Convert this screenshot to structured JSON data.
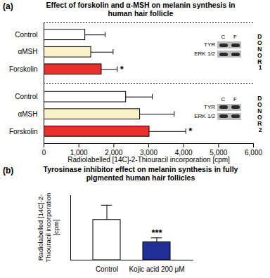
{
  "chart_data": [
    {
      "type": "bar",
      "orientation": "horizontal",
      "panel_label": "(a)",
      "title": "Effect of forskolin and α-MSH on melanin synthesis in human hair follicle",
      "categories": [
        "Control",
        "αMSH",
        "Forskolin"
      ],
      "colors": [
        "#ffffff",
        "#f8f2c6",
        "#e8312a"
      ],
      "groups": [
        {
          "name": "DONOR 1",
          "values": [
            1180,
            1350,
            1650
          ],
          "errors": [
            570,
            630,
            450
          ],
          "annotations": [
            null,
            null,
            "*"
          ]
        },
        {
          "name": "DONOR 2",
          "values": [
            2350,
            2750,
            3020
          ],
          "errors": [
            750,
            980,
            1040
          ],
          "annotations": [
            null,
            null,
            "*"
          ]
        }
      ],
      "blot": {
        "lanes": [
          "C",
          "F"
        ],
        "bands": [
          "TYR",
          "ERK 1/2"
        ]
      },
      "xlabel": "Radiolabelled [14C]-2-Thiouracil incorporation [cpm]",
      "xlim": [
        0,
        6000
      ],
      "xticks": [
        0,
        1000,
        2000,
        3000,
        4000,
        5000,
        6000
      ]
    },
    {
      "type": "bar",
      "panel_label": "(b)",
      "title": "Tyrosinase inhibitor effect on melanin synthesis in fully pigmented human hair follicles",
      "categories": [
        "Control",
        "Kojic acid 200 μM"
      ],
      "values": [
        1120,
        500
      ],
      "errors": [
        410,
        120
      ],
      "annotations": [
        null,
        "***"
      ],
      "colors": [
        "#ffffff",
        "#1f2f9a"
      ],
      "ylabel": "Radiolabelled [14C]-2-Thiouracil incorporation [cpm]",
      "ylim": [
        0,
        1800
      ],
      "tick_labels": "x"
    }
  ]
}
